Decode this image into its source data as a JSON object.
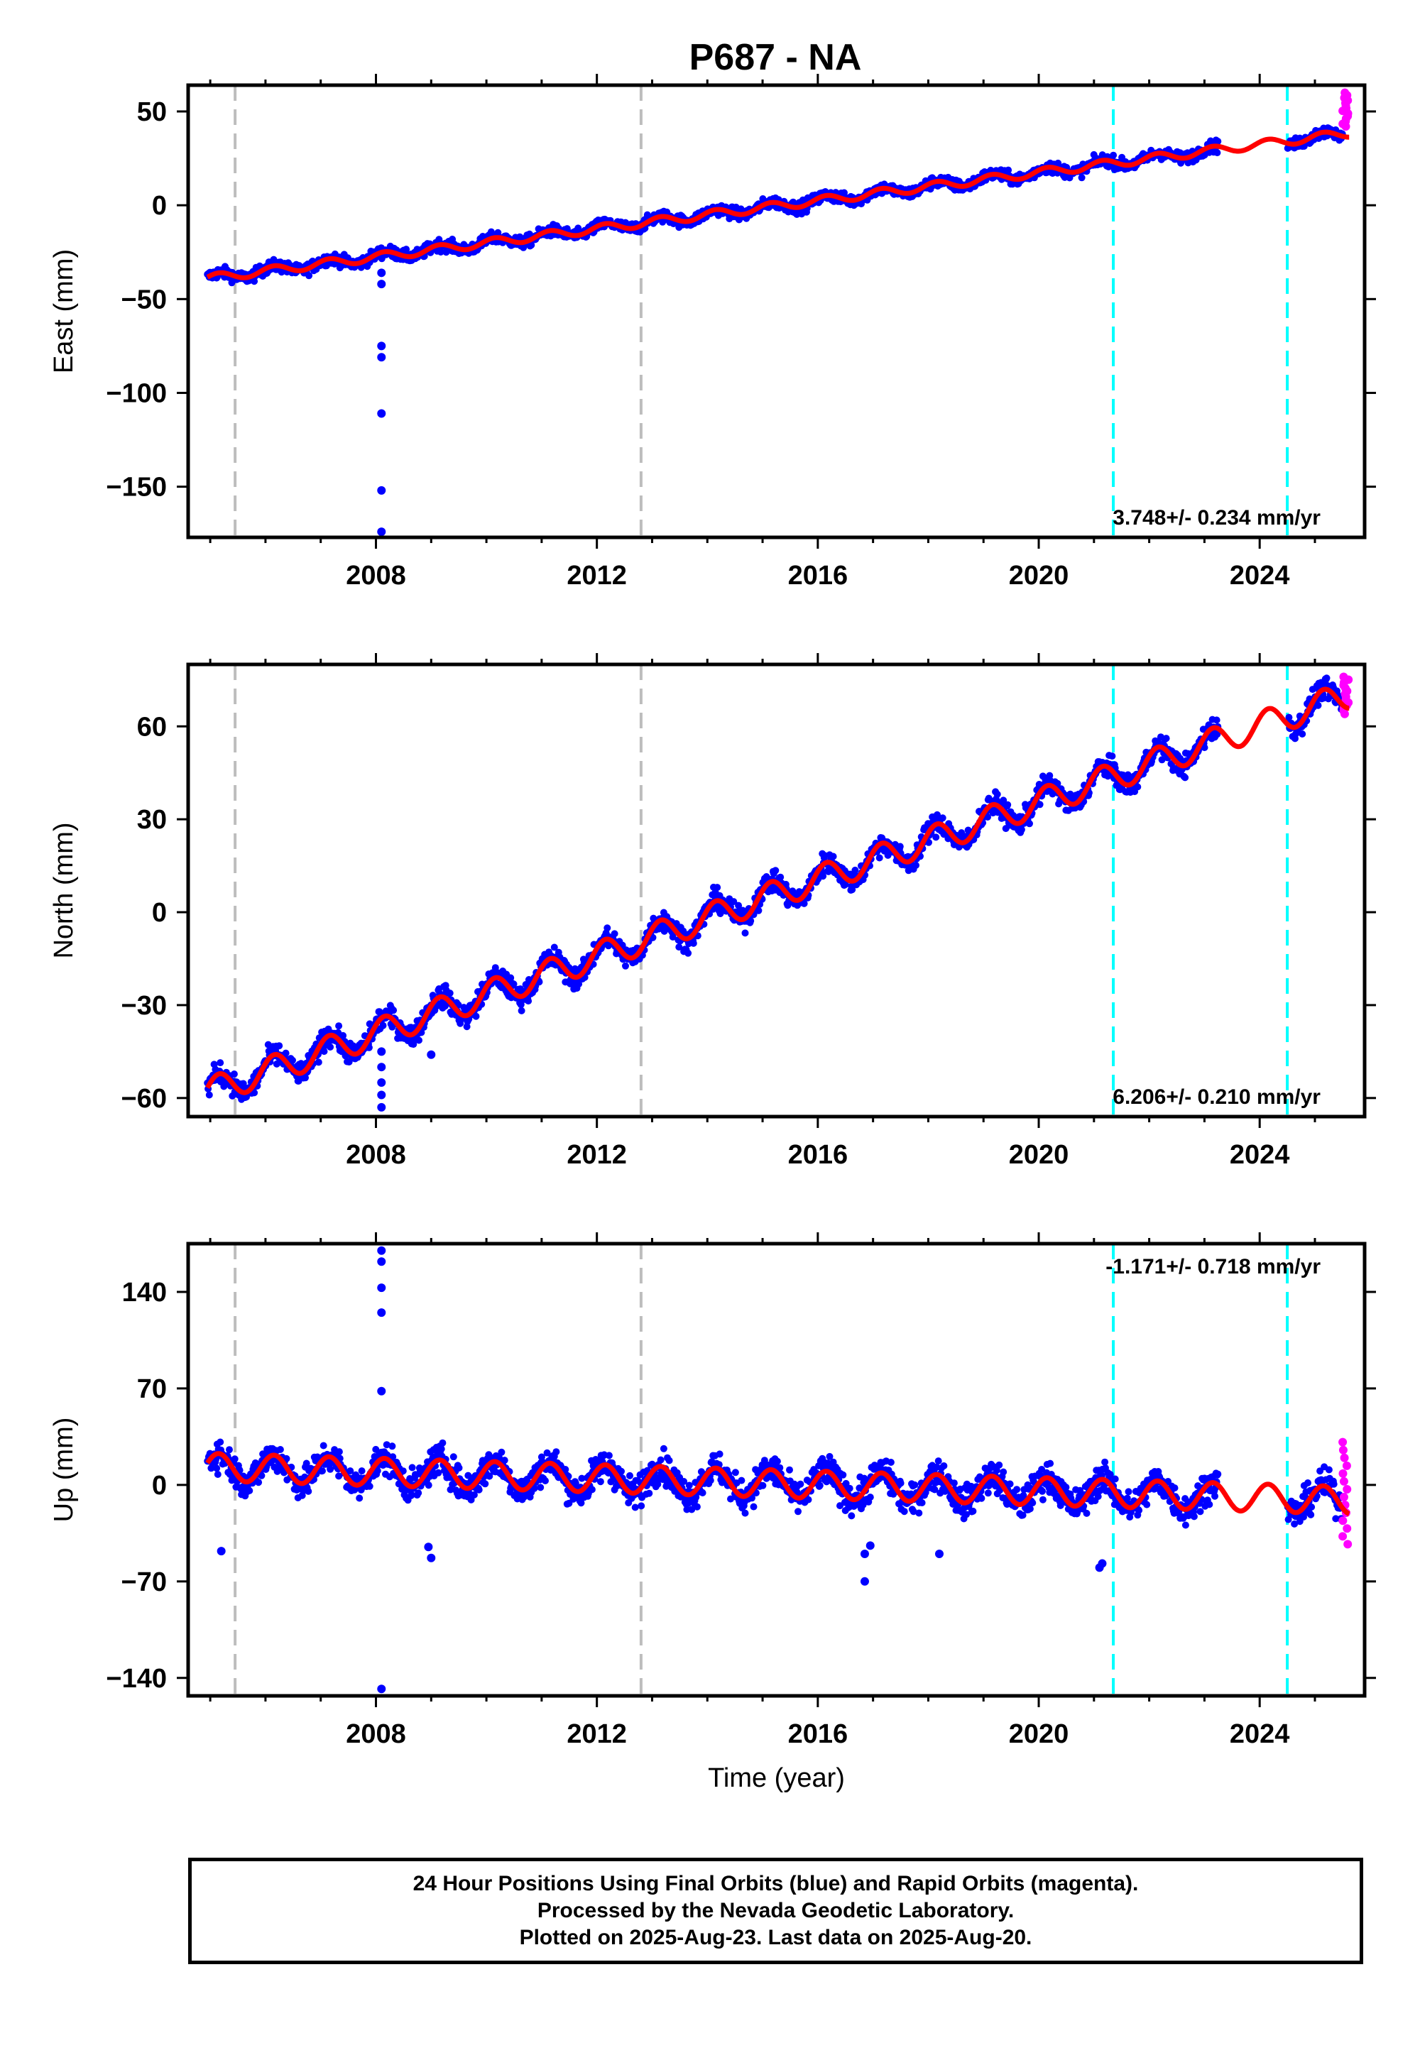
{
  "title": "P687 - NA",
  "colors": {
    "final_orbits": "#0000ff",
    "rapid_orbits": "#ff00ff",
    "model_fit": "#ff0000",
    "antenna_change": "#bdbdbd",
    "equipment_change": "#00ffff"
  },
  "footnote": {
    "line1": "24 Hour Positions Using Final Orbits (blue) and Rapid Orbits (magenta).",
    "line2": "Processed by the Nevada Geodetic Laboratory.",
    "line3": "Plotted on 2025-Aug-23. Last data on 2025-Aug-20."
  },
  "chart_data": [
    {
      "type": "scatter",
      "ylabel": "East (mm)",
      "xlabel": "",
      "rate": "3.748+/- 0.234 mm/yr",
      "rate_position": "bottom-right",
      "xlim": [
        2004.6,
        2025.9
      ],
      "ylim": [
        -177,
        64
      ],
      "x_ticks": [
        2008,
        2012,
        2016,
        2020,
        2024
      ],
      "x_tick_labels": [
        "2008",
        "2012",
        "2016",
        "2020",
        "2024"
      ],
      "y_ticks": [
        50,
        0,
        -50,
        -100,
        -150
      ],
      "y_tick_labels": [
        "50",
        "0",
        "−50",
        "−100",
        "−150"
      ],
      "start_value": -39,
      "velocity": 3.748,
      "seasonal_amplitude": 2.2,
      "noise": 2.2,
      "outliers": [
        {
          "x": 2008.1,
          "y": -75
        },
        {
          "x": 2008.1,
          "y": -81
        },
        {
          "x": 2008.1,
          "y": -111
        },
        {
          "x": 2008.1,
          "y": -152
        },
        {
          "x": 2008.1,
          "y": -174
        },
        {
          "x": 2008.1,
          "y": -36
        },
        {
          "x": 2008.1,
          "y": -42
        }
      ],
      "vlines_gray": [
        2005.45,
        2012.8
      ],
      "vlines_cyan": [
        2021.35,
        2024.5
      ],
      "gaps": [
        [
          2023.25,
          2024.5
        ]
      ],
      "rapid": {
        "x_start": 2025.5,
        "x_end": 2025.62,
        "y_min": 42,
        "y_max": 60
      }
    },
    {
      "type": "scatter",
      "ylabel": "North (mm)",
      "xlabel": "",
      "rate": "6.206+/- 0.210 mm/yr",
      "rate_position": "bottom-right",
      "xlim": [
        2004.6,
        2025.9
      ],
      "ylim": [
        -66,
        80
      ],
      "x_ticks": [
        2008,
        2012,
        2016,
        2020,
        2024
      ],
      "x_tick_labels": [
        "2008",
        "2012",
        "2016",
        "2020",
        "2024"
      ],
      "y_ticks": [
        60,
        30,
        0,
        -30,
        -60
      ],
      "y_tick_labels": [
        "60",
        "30",
        "0",
        "−30",
        "−60"
      ],
      "start_value": -58,
      "velocity": 6.206,
      "seasonal_amplitude": 4.5,
      "noise": 2.5,
      "outliers": [
        {
          "x": 2008.1,
          "y": -45
        },
        {
          "x": 2008.1,
          "y": -50
        },
        {
          "x": 2008.1,
          "y": -55
        },
        {
          "x": 2008.1,
          "y": -59
        },
        {
          "x": 2008.1,
          "y": -63
        },
        {
          "x": 2009.0,
          "y": -46
        }
      ],
      "vlines_gray": [
        2005.45,
        2012.8
      ],
      "vlines_cyan": [
        2021.35,
        2024.5
      ],
      "gaps": [
        [
          2023.25,
          2024.5
        ]
      ],
      "rapid": {
        "x_start": 2025.5,
        "x_end": 2025.62,
        "y_min": 64,
        "y_max": 76
      }
    },
    {
      "type": "scatter",
      "ylabel": "Up (mm)",
      "xlabel": "Time (year)",
      "rate": "-1.171+/- 0.718 mm/yr",
      "rate_position": "top-right",
      "xlim": [
        2004.6,
        2025.9
      ],
      "ylim": [
        -153,
        175
      ],
      "x_ticks": [
        2008,
        2012,
        2016,
        2020,
        2024
      ],
      "x_tick_labels": [
        "2008",
        "2012",
        "2016",
        "2020",
        "2024"
      ],
      "y_ticks": [
        140,
        70,
        0,
        -70,
        -140
      ],
      "y_tick_labels": [
        "140",
        "70",
        "0",
        "−70",
        "−140"
      ],
      "start_value": 13,
      "velocity": -1.171,
      "seasonal_amplitude": 10,
      "noise": 8,
      "outliers": [
        {
          "x": 2008.1,
          "y": 170
        },
        {
          "x": 2008.1,
          "y": 162
        },
        {
          "x": 2008.1,
          "y": 143
        },
        {
          "x": 2008.1,
          "y": 125
        },
        {
          "x": 2008.1,
          "y": 68
        },
        {
          "x": 2008.1,
          "y": -148
        },
        {
          "x": 2005.2,
          "y": -48
        },
        {
          "x": 2009.0,
          "y": -53
        },
        {
          "x": 2008.95,
          "y": -45
        },
        {
          "x": 2016.85,
          "y": -70
        },
        {
          "x": 2016.85,
          "y": -50
        },
        {
          "x": 2016.95,
          "y": -44
        },
        {
          "x": 2018.2,
          "y": -50
        },
        {
          "x": 2021.1,
          "y": -60
        },
        {
          "x": 2021.15,
          "y": -57
        }
      ],
      "vlines_gray": [
        2005.45,
        2012.8
      ],
      "vlines_cyan": [
        2021.35,
        2024.5
      ],
      "gaps": [
        [
          2023.25,
          2024.5
        ]
      ],
      "rapid": {
        "x_start": 2025.5,
        "x_end": 2025.62,
        "y_min": -43,
        "y_max": 31
      }
    }
  ]
}
